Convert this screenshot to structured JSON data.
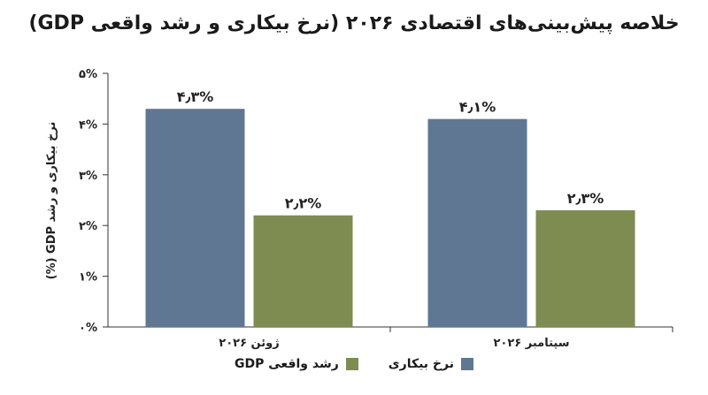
{
  "chart_data": {
    "type": "bar",
    "title": "خلاصه پیش‌بینی‌های اقتصادی ۲۰۲۶ (نرخ بیکاری و رشد واقعی GDP)",
    "ylabel": "نرخ بیکاری و رشد GDP (%)",
    "xlabel": "",
    "categories": [
      "ژوئن ۲۰۲۶",
      "سپتامبر ۲۰۲۶"
    ],
    "series": [
      {
        "name": "نرخ بیکاری",
        "values": [
          4.3,
          4.1
        ],
        "labels": [
          "۴٫۳%",
          "۴٫۱%"
        ],
        "color": "#5f7793"
      },
      {
        "name": "رشد واقعی GDP",
        "values": [
          2.2,
          2.3
        ],
        "labels": [
          "۲٫۲%",
          "۲٫۳%"
        ],
        "color": "#7e8b51"
      }
    ],
    "ylim": [
      0,
      5
    ],
    "yticks": [
      0,
      1,
      2,
      3,
      4,
      5
    ],
    "ytick_labels": [
      "۰%",
      "۱%",
      "۲%",
      "۳%",
      "۴%",
      "۵%"
    ],
    "grid": false,
    "legend_position": "bottom"
  }
}
